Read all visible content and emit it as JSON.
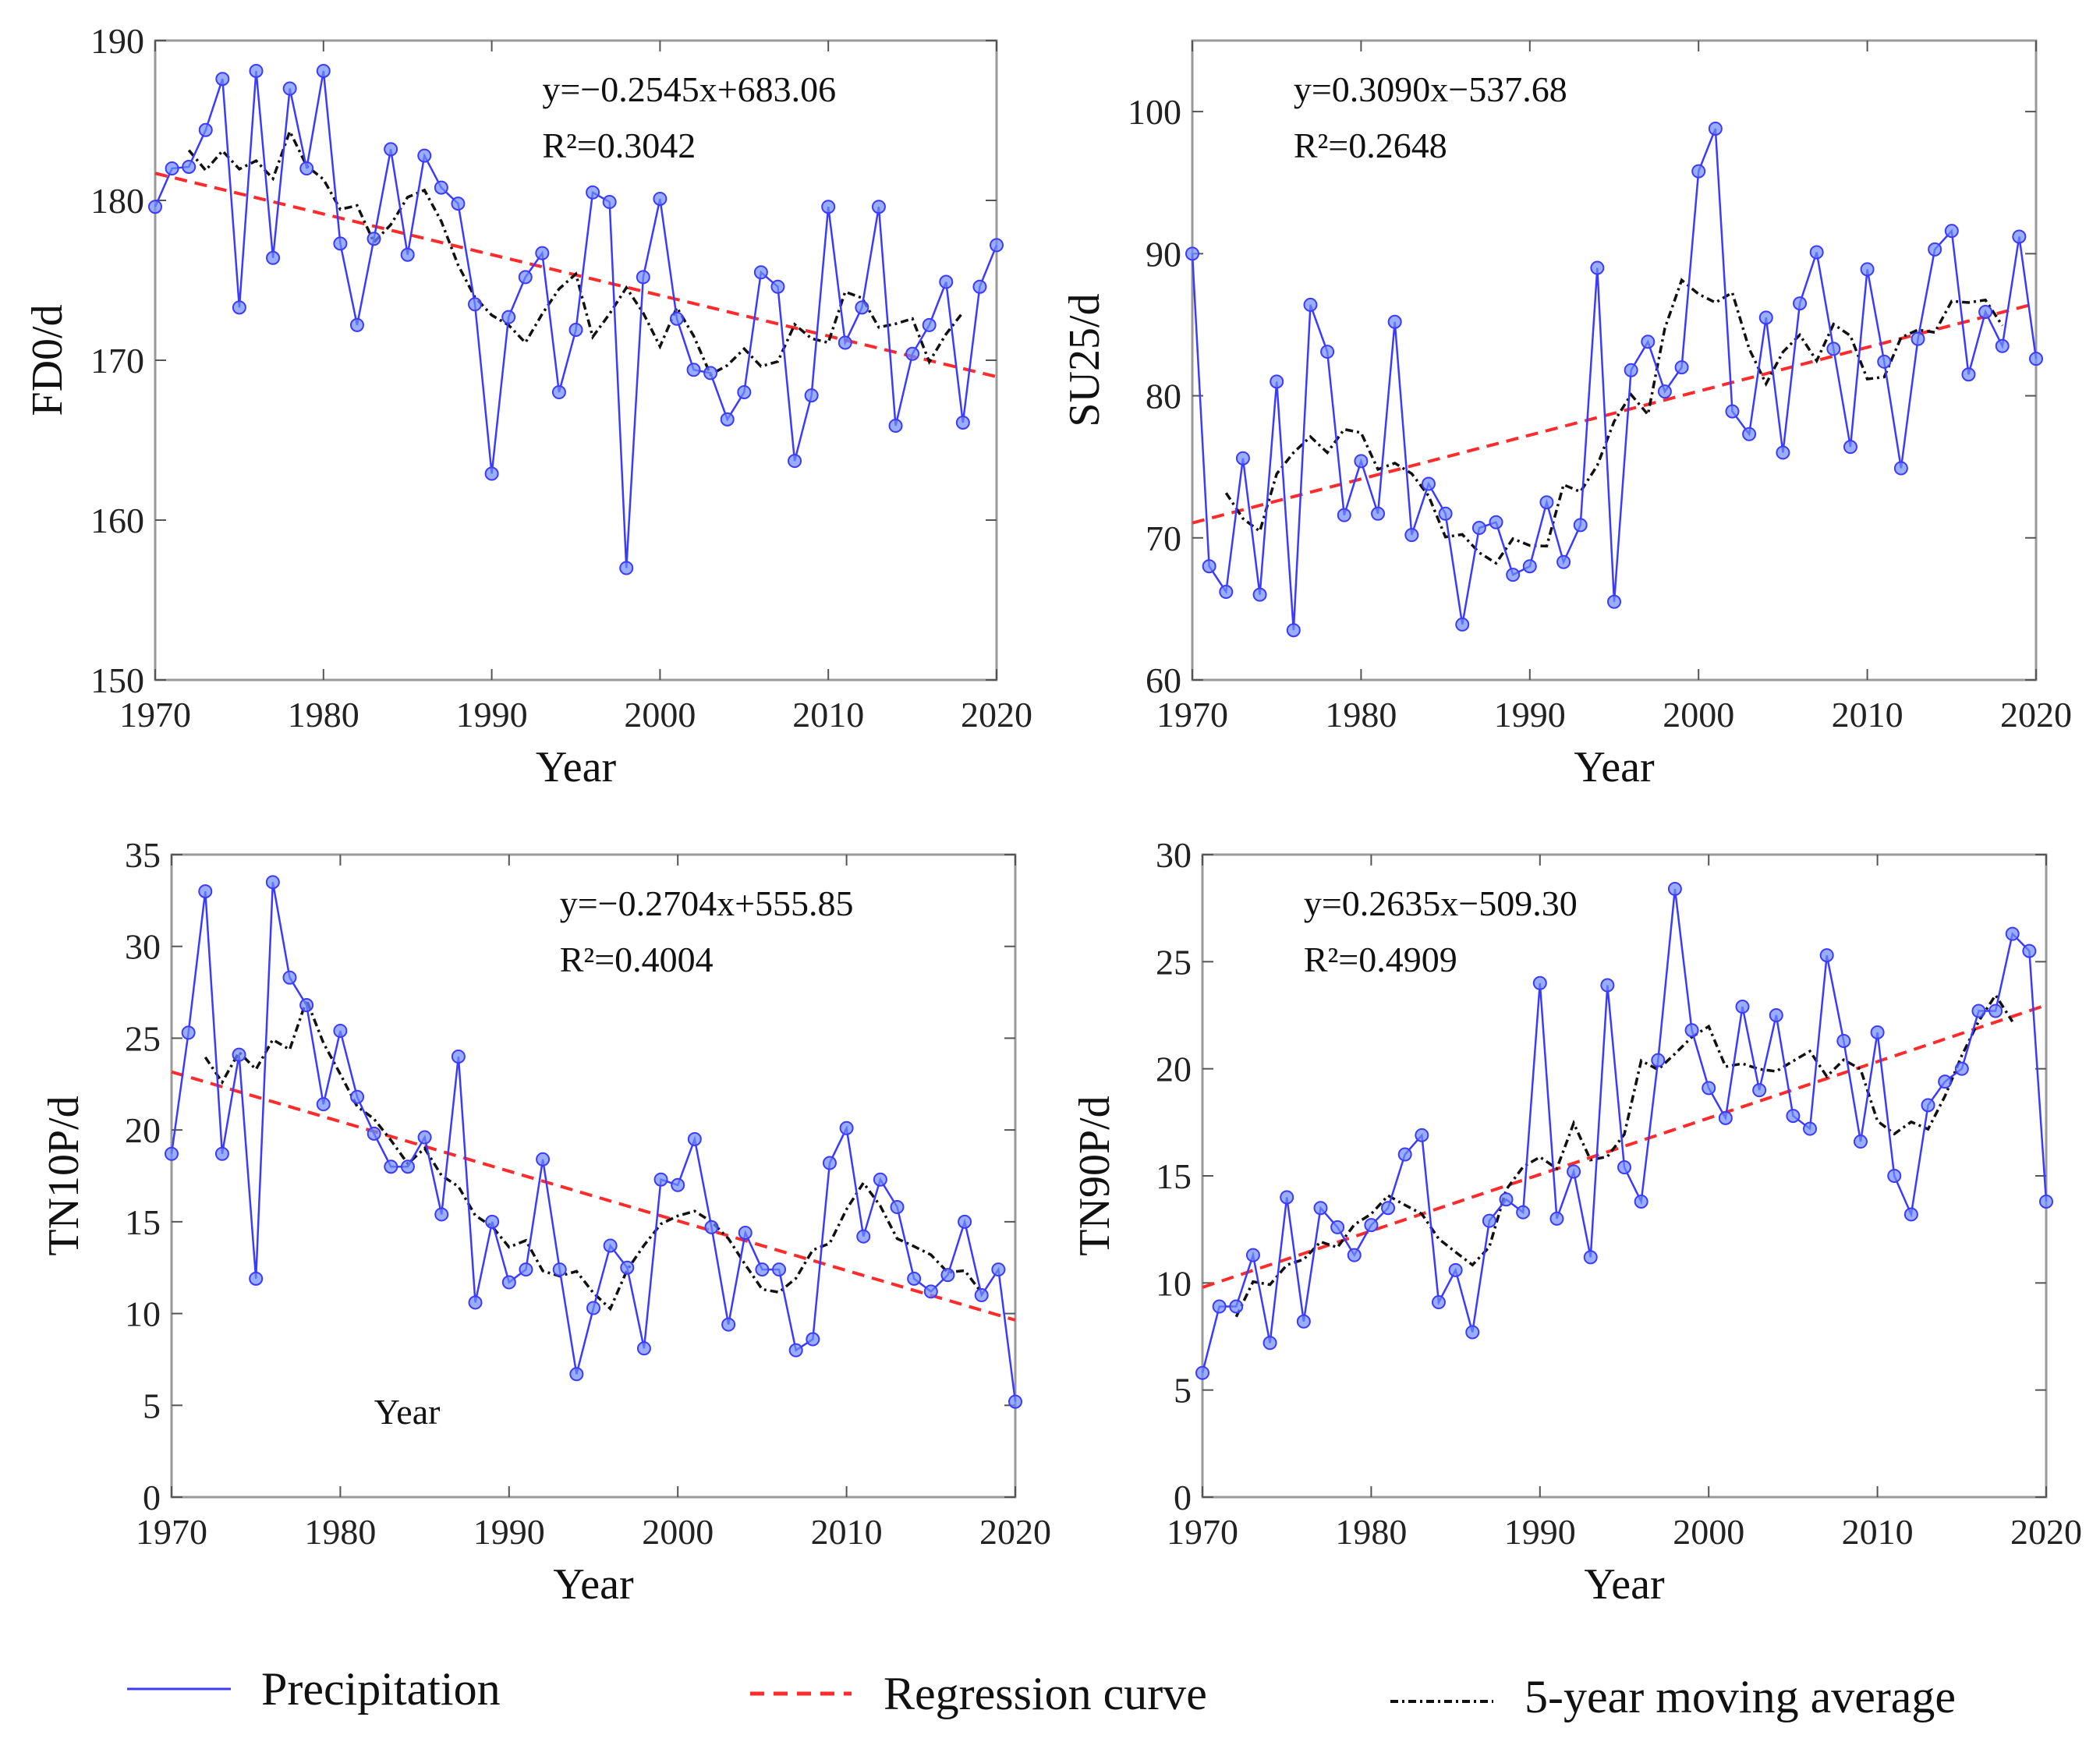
{
  "chart_data": [
    {
      "type": "line",
      "id": "fd0",
      "ylabel": "FD0/d",
      "xlabel": "Year",
      "xlim": [
        1970,
        2020
      ],
      "ylim": [
        150,
        190
      ],
      "xticks": [
        1970,
        1980,
        1990,
        2000,
        2010,
        2020
      ],
      "yticks": [
        150,
        160,
        170,
        180,
        190
      ],
      "equation": "y=−0.2545x+683.06",
      "r2": "R²=0.3042",
      "slope": -0.2545,
      "intercept": 683.06,
      "equation_position": "top-right",
      "x": [
        1970,
        1971,
        1972,
        1973,
        1974,
        1975,
        1976,
        1977,
        1978,
        1979,
        1980,
        1981,
        1982,
        1983,
        1984,
        1985,
        1986,
        1987,
        1988,
        1989,
        1990,
        1991,
        1992,
        1993,
        1994,
        1995,
        1996,
        1997,
        1998,
        1999,
        2000,
        2001,
        2002,
        2003,
        2004,
        2005,
        2006,
        2007,
        2008,
        2009,
        2010,
        2011,
        2012,
        2013,
        2014,
        2015,
        2016,
        2017,
        2018,
        2019,
        2020
      ],
      "values": [
        179.6,
        182,
        182.1,
        184.4,
        187.6,
        173.3,
        188.1,
        176.4,
        187,
        182,
        188.1,
        177.3,
        172.2,
        177.6,
        183.2,
        176.6,
        182.8,
        180.8,
        179.8,
        173.5,
        162.9,
        172.7,
        175.2,
        176.7,
        168,
        171.9,
        180.5,
        179.9,
        157,
        175.2,
        180.1,
        172.6,
        169.4,
        169.2,
        166.3,
        168,
        175.5,
        174.6,
        163.7,
        167.8,
        179.6,
        171.1,
        173.3,
        179.6,
        165.9,
        170.4,
        172.2,
        174.9,
        166.1,
        174.6,
        177.2
      ]
    },
    {
      "type": "line",
      "id": "su25",
      "ylabel": "SU25/d",
      "xlabel": "Year",
      "xlim": [
        1970,
        2020
      ],
      "ylim": [
        60,
        105
      ],
      "xticks": [
        1970,
        1980,
        1990,
        2000,
        2010,
        2020
      ],
      "yticks": [
        60,
        70,
        80,
        90,
        100
      ],
      "equation": "y=0.3090x−537.68",
      "r2": "R²=0.2648",
      "slope": 0.309,
      "intercept": -537.68,
      "equation_position": "top-left",
      "x": [
        1970,
        1971,
        1972,
        1973,
        1974,
        1975,
        1976,
        1977,
        1978,
        1979,
        1980,
        1981,
        1982,
        1983,
        1984,
        1985,
        1986,
        1987,
        1988,
        1989,
        1990,
        1991,
        1992,
        1993,
        1994,
        1995,
        1996,
        1997,
        1998,
        1999,
        2000,
        2001,
        2002,
        2003,
        2004,
        2005,
        2006,
        2007,
        2008,
        2009,
        2010,
        2011,
        2012,
        2013,
        2014,
        2015,
        2016,
        2017,
        2018,
        2019,
        2020
      ],
      "values": [
        90,
        68,
        66.2,
        75.6,
        66,
        81,
        63.5,
        86.4,
        83.1,
        71.6,
        75.4,
        71.7,
        85.2,
        70.2,
        73.8,
        71.7,
        63.9,
        70.7,
        71.1,
        67.4,
        68,
        72.5,
        68.3,
        70.9,
        89,
        65.5,
        81.8,
        83.8,
        80.3,
        82,
        95.8,
        98.8,
        78.9,
        77.3,
        85.5,
        76,
        86.5,
        90.1,
        83.3,
        76.4,
        88.9,
        82.4,
        74.9,
        84,
        90.3,
        91.6,
        81.5,
        85.9,
        83.5,
        91.2,
        82.6
      ]
    },
    {
      "type": "line",
      "id": "tn10p",
      "ylabel": "TN10P/d",
      "xlabel": "Year",
      "xlim": [
        1970,
        2020
      ],
      "ylim": [
        0,
        35
      ],
      "xticks": [
        1970,
        1980,
        1990,
        2000,
        2010,
        2020
      ],
      "yticks": [
        0,
        5,
        10,
        15,
        20,
        25,
        30,
        35
      ],
      "equation": "y=−0.2704x+555.85",
      "r2": "R²=0.4004",
      "slope": -0.2704,
      "intercept": 555.85,
      "equation_position": "top-right",
      "annotation": {
        "text": "Year",
        "x": 1982,
        "y": 4
      },
      "x": [
        1970,
        1971,
        1972,
        1973,
        1974,
        1975,
        1976,
        1977,
        1978,
        1979,
        1980,
        1981,
        1982,
        1983,
        1984,
        1985,
        1986,
        1987,
        1988,
        1989,
        1990,
        1991,
        1992,
        1993,
        1994,
        1995,
        1996,
        1997,
        1998,
        1999,
        2000,
        2001,
        2002,
        2003,
        2004,
        2005,
        2006,
        2007,
        2008,
        2009,
        2010,
        2011,
        2012,
        2013,
        2014,
        2015,
        2016,
        2017,
        2018,
        2019,
        2020
      ],
      "values": [
        18.7,
        25.3,
        33,
        18.7,
        24.1,
        11.9,
        33.5,
        28.3,
        26.8,
        21.4,
        25.4,
        21.8,
        19.8,
        18,
        18,
        19.6,
        15.4,
        24,
        10.6,
        15,
        11.7,
        12.4,
        18.4,
        12.4,
        6.7,
        10.3,
        13.7,
        12.5,
        8.1,
        17.3,
        17,
        19.5,
        14.7,
        9.4,
        14.4,
        12.4,
        12.4,
        8,
        8.6,
        18.2,
        20.1,
        14.2,
        17.3,
        15.8,
        11.9,
        11.2,
        12.1,
        15,
        11,
        12.4,
        5.2
      ]
    },
    {
      "type": "line",
      "id": "tn90p",
      "ylabel": "TN90P/d",
      "xlabel": "Year",
      "xlim": [
        1970,
        2020
      ],
      "ylim": [
        0,
        30
      ],
      "xticks": [
        1970,
        1980,
        1990,
        2000,
        2010,
        2020
      ],
      "yticks": [
        0,
        5,
        10,
        15,
        20,
        25,
        30
      ],
      "equation": "y=0.2635x−509.30",
      "r2": "R²=0.4909",
      "slope": 0.2635,
      "intercept": -509.3,
      "equation_position": "top-left",
      "x": [
        1970,
        1971,
        1972,
        1973,
        1974,
        1975,
        1976,
        1977,
        1978,
        1979,
        1980,
        1981,
        1982,
        1983,
        1984,
        1985,
        1986,
        1987,
        1988,
        1989,
        1990,
        1991,
        1992,
        1993,
        1994,
        1995,
        1996,
        1997,
        1998,
        1999,
        2000,
        2001,
        2002,
        2003,
        2004,
        2005,
        2006,
        2007,
        2008,
        2009,
        2010,
        2011,
        2012,
        2013,
        2014,
        2015,
        2016,
        2017,
        2018,
        2019,
        2020
      ],
      "values": [
        5.8,
        8.9,
        8.9,
        11.3,
        7.2,
        14,
        8.2,
        13.5,
        12.6,
        11.3,
        12.7,
        13.5,
        16,
        16.9,
        9.1,
        10.6,
        7.7,
        12.9,
        13.9,
        13.3,
        24,
        13,
        15.2,
        11.2,
        23.9,
        15.4,
        13.8,
        20.4,
        28.4,
        21.8,
        19.1,
        17.7,
        22.9,
        19,
        22.5,
        17.8,
        17.2,
        25.3,
        21.3,
        16.6,
        21.7,
        15,
        13.2,
        18.3,
        19.4,
        20,
        22.7,
        22.7,
        26.3,
        25.5,
        13.8
      ]
    }
  ],
  "legend": {
    "position": "bottom",
    "items": [
      {
        "label": "Precipitation",
        "color": "#3b3bff",
        "style": "solid"
      },
      {
        "label": "Regression curve",
        "color": "#ff2a2a",
        "style": "dashed"
      },
      {
        "label": "5-year moving average",
        "color": "#111111",
        "style": "dash-dot"
      }
    ]
  },
  "colors": {
    "series": "#3b3bff",
    "marker": "#6f8cff",
    "regression": "#ff2a2a",
    "moving_average": "#111111",
    "axis": "#9a9a9a"
  }
}
